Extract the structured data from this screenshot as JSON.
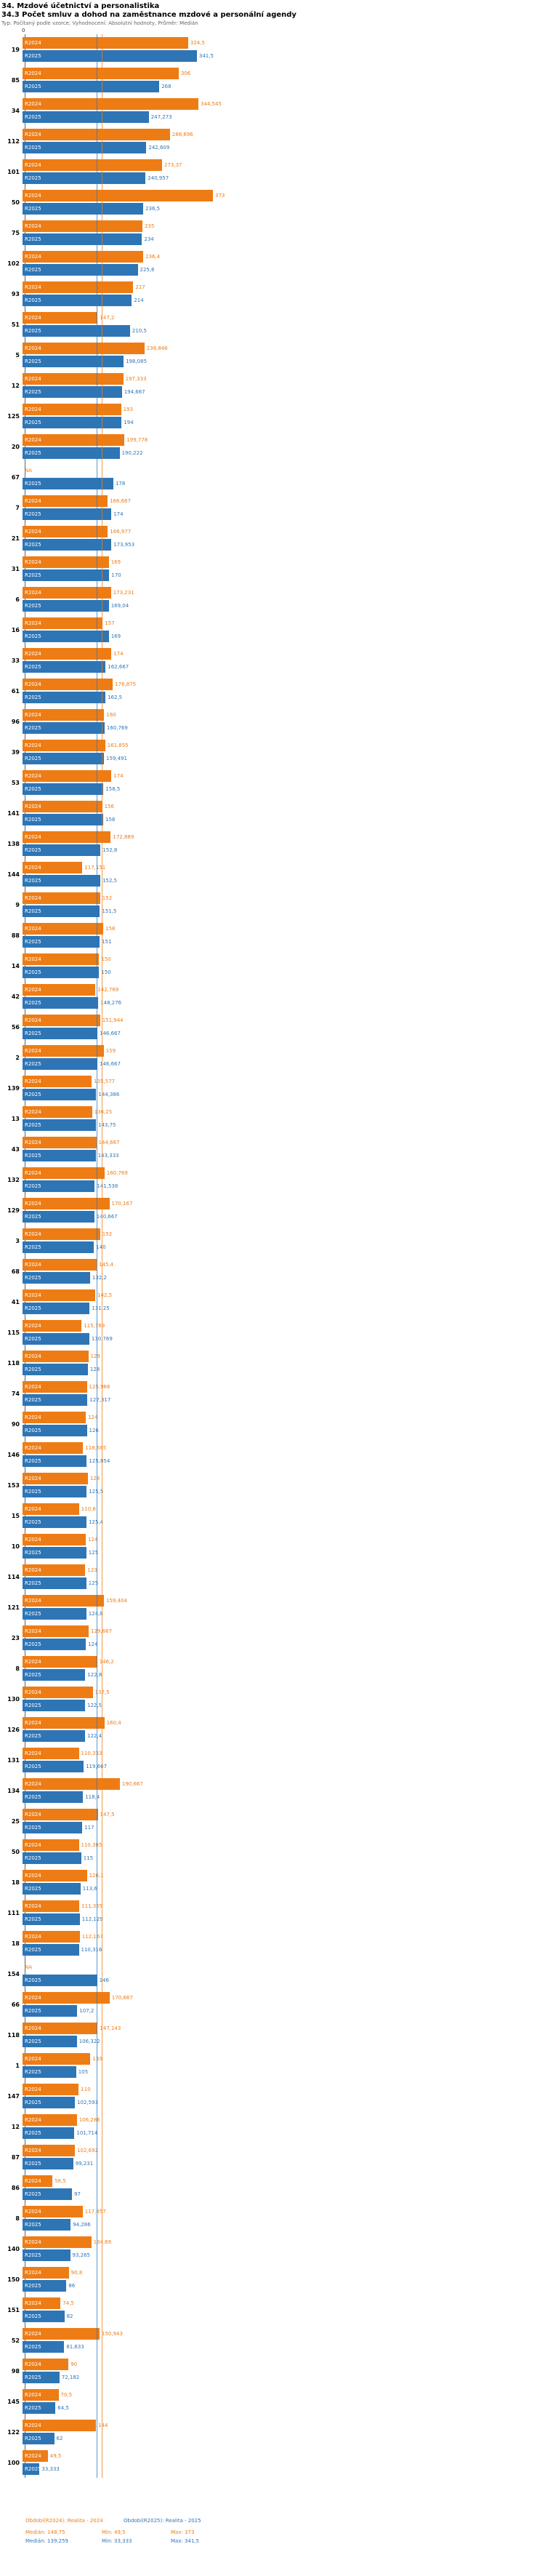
{
  "chart_data": {
    "type": "bar",
    "orientation": "horizontal",
    "title": "34. Mzdové účetnictví a personalistika",
    "subtitle": "34.3 Počet smluv a dohod na zaměstnance mzdové a personální agendy",
    "note": "Typ: Počítaný podle vzorce; Vyhodnocení: Absolutní hodnoty, Průměr: Medián",
    "axis": {
      "zero_label": "0"
    },
    "xlim": [
      0,
      373
    ],
    "grid": false,
    "legend_position": "bottom",
    "series": [
      {
        "key": "r2024",
        "tag": "R2024",
        "name": "Období(R2024): Realita - 2024",
        "color": "#EE7C15"
      },
      {
        "key": "r2025",
        "tag": "R2025",
        "name": "Období(R2025): Realita - 2025",
        "color": "#2E75B6"
      }
    ],
    "medians": [
      148.75,
      139.259
    ],
    "stats": [
      {
        "median": "Medián: 148,75",
        "min": "Min: 49,5",
        "max": "Max: 373"
      },
      {
        "median": "Medián: 139,259",
        "min": "Min: 33,333",
        "max": "Max: 341,5"
      }
    ],
    "rows": [
      {
        "id": "19",
        "r2024": "324,5",
        "r2025": "341,5"
      },
      {
        "id": "85",
        "r2024": "306",
        "r2025": "268"
      },
      {
        "id": "34",
        "r2024": "344,545",
        "r2025": "247,273"
      },
      {
        "id": "112",
        "r2024": "288,696",
        "r2025": "242,609"
      },
      {
        "id": "101",
        "r2024": "273,37",
        "r2025": "240,957"
      },
      {
        "id": "50",
        "r2024": "373",
        "r2025": "236,5"
      },
      {
        "id": "75",
        "r2024": "235",
        "r2025": "234"
      },
      {
        "id": "102",
        "r2024": "236,4",
        "r2025": "225,6"
      },
      {
        "id": "93",
        "r2024": "217",
        "r2025": "214"
      },
      {
        "id": "51",
        "r2024": "147,2",
        "r2025": "210,5"
      },
      {
        "id": "5",
        "r2024": "238,846",
        "r2025": "198,085"
      },
      {
        "id": "12",
        "r2024": "197,333",
        "r2025": "194,667"
      },
      {
        "id": "125",
        "r2024": "193",
        "r2025": "194"
      },
      {
        "id": "20",
        "r2024": "199,778",
        "r2025": "190,222"
      },
      {
        "id": "67",
        "r2024": "NA",
        "r2025": "178"
      },
      {
        "id": "7",
        "r2024": "166,667",
        "r2025": "174"
      },
      {
        "id": "21",
        "r2024": "166,977",
        "r2025": "173,953"
      },
      {
        "id": "31",
        "r2024": "169",
        "r2025": "170"
      },
      {
        "id": "6",
        "r2024": "173,231",
        "r2025": "169,04"
      },
      {
        "id": "16",
        "r2024": "157",
        "r2025": "169"
      },
      {
        "id": "33",
        "r2024": "174",
        "r2025": "162,667"
      },
      {
        "id": "61",
        "r2024": "176,875",
        "r2025": "162,5"
      },
      {
        "id": "96",
        "r2024": "160",
        "r2025": "160,769"
      },
      {
        "id": "39",
        "r2024": "161,855",
        "r2025": "159,491"
      },
      {
        "id": "53",
        "r2024": "174",
        "r2025": "158,5"
      },
      {
        "id": "141",
        "r2024": "156",
        "r2025": "158"
      },
      {
        "id": "138",
        "r2024": "172,889",
        "r2025": "152,8"
      },
      {
        "id": "144",
        "r2024": "117,151",
        "r2025": "152,5"
      },
      {
        "id": "9",
        "r2024": "152",
        "r2025": "151,5"
      },
      {
        "id": "88",
        "r2024": "158",
        "r2025": "151"
      },
      {
        "id": "14",
        "r2024": "150",
        "r2025": "150"
      },
      {
        "id": "42",
        "r2024": "142,769",
        "r2025": "148,276"
      },
      {
        "id": "56",
        "r2024": "151,944",
        "r2025": "146,667"
      },
      {
        "id": "2",
        "r2024": "159",
        "r2025": "146,667"
      },
      {
        "id": "139",
        "r2024": "135,577",
        "r2025": "144,386"
      },
      {
        "id": "13",
        "r2024": "136,25",
        "r2025": "143,75"
      },
      {
        "id": "43",
        "r2024": "144,667",
        "r2025": "143,333"
      },
      {
        "id": "132",
        "r2024": "160,769",
        "r2025": "141,538"
      },
      {
        "id": "129",
        "r2024": "170,167",
        "r2025": "140,667"
      },
      {
        "id": "3",
        "r2024": "152",
        "r2025": "140"
      },
      {
        "id": "68",
        "r2024": "145,4",
        "r2025": "132,2"
      },
      {
        "id": "41",
        "r2024": "142,5",
        "r2025": "131,25"
      },
      {
        "id": "115",
        "r2024": "115,769",
        "r2025": "130,769"
      },
      {
        "id": "118",
        "r2024": "129",
        "r2025": "128"
      },
      {
        "id": "74",
        "r2024": "125,966",
        "r2025": "127,317"
      },
      {
        "id": "90",
        "r2024": "124",
        "r2025": "126"
      },
      {
        "id": "146",
        "r2024": "118,585",
        "r2025": "125,854"
      },
      {
        "id": "153",
        "r2024": "128",
        "r2025": "125,5"
      },
      {
        "id": "15",
        "r2024": "110,8",
        "r2025": "125,4"
      },
      {
        "id": "10",
        "r2024": "124",
        "r2025": "125"
      },
      {
        "id": "114",
        "r2024": "123",
        "r2025": "125"
      },
      {
        "id": "121",
        "r2024": "159,404",
        "r2025": "124,8"
      },
      {
        "id": "23",
        "r2024": "129,667",
        "r2025": "124"
      },
      {
        "id": "8",
        "r2024": "146,2",
        "r2025": "122,8"
      },
      {
        "id": "130",
        "r2024": "137,5",
        "r2025": "122,5"
      },
      {
        "id": "126",
        "r2024": "160,4",
        "r2025": "122,4"
      },
      {
        "id": "131",
        "r2024": "110,333",
        "r2025": "119,667"
      },
      {
        "id": "134",
        "r2024": "190,667",
        "r2025": "118,4"
      },
      {
        "id": "25",
        "r2024": "147,5",
        "r2025": "117"
      },
      {
        "id": "50",
        "r2024": "110,385",
        "r2025": "115"
      },
      {
        "id": "18",
        "r2024": "126,1",
        "r2025": "113,6"
      },
      {
        "id": "111",
        "r2024": "111,355",
        "r2025": "112,129"
      },
      {
        "id": "18",
        "r2024": "112,167",
        "r2025": "110,316"
      },
      {
        "id": "154",
        "r2024": "NA",
        "r2025": "146"
      },
      {
        "id": "66",
        "r2024": "170,667",
        "r2025": "107,2"
      },
      {
        "id": "118",
        "r2024": "147,143",
        "r2025": "106,322"
      },
      {
        "id": "1",
        "r2024": "133",
        "r2025": "105"
      },
      {
        "id": "147",
        "r2024": "110",
        "r2025": "102,593"
      },
      {
        "id": "12",
        "r2024": "106,286",
        "r2025": "101,714"
      },
      {
        "id": "87",
        "r2024": "102,692",
        "r2025": "99,231"
      },
      {
        "id": "86",
        "r2024": "58,5",
        "r2025": "97"
      },
      {
        "id": "8",
        "r2024": "117,857",
        "r2025": "94,286"
      },
      {
        "id": "140",
        "r2024": "134,69",
        "r2025": "93,265"
      },
      {
        "id": "150",
        "r2024": "90,8",
        "r2025": "86"
      },
      {
        "id": "151",
        "r2024": "74,5",
        "r2025": "82"
      },
      {
        "id": "52",
        "r2024": "150,943",
        "r2025": "81,633"
      },
      {
        "id": "98",
        "r2024": "90",
        "r2025": "72,182"
      },
      {
        "id": "145",
        "r2024": "70,5",
        "r2025": "64,5"
      },
      {
        "id": "122",
        "r2024": "144",
        "r2025": "62"
      },
      {
        "id": "100",
        "r2024": "49,5",
        "r2025": "33,333"
      }
    ]
  }
}
